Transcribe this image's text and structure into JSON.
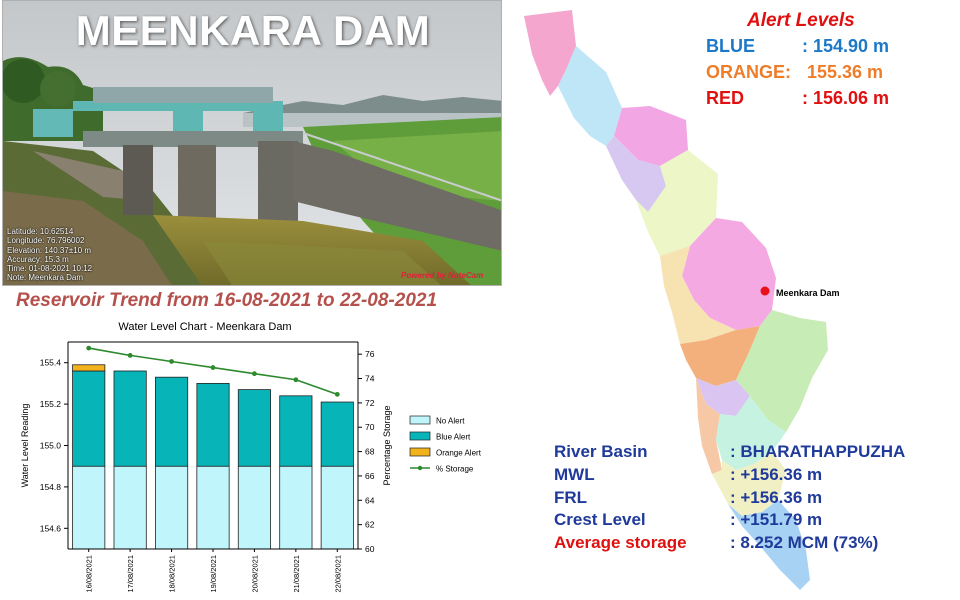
{
  "photo": {
    "title": "MEENKARA DAM",
    "meta_lines": [
      "Latitude: 10.62514",
      "Longitude: 76.796002",
      "Elevation: 140.37±10 m",
      "Accuracy: 15.3 m",
      "Time: 01-08-2021 10:12",
      "Note: Meenkara Dam"
    ],
    "watermark": "Powered by NoteCam"
  },
  "trend_heading": "Reservoir Trend from 16-08-2021 to 22-08-2021",
  "alert_levels": {
    "title": "Alert Levels",
    "blue": {
      "label": "BLUE",
      "value": ": 154.90 m",
      "color": "#1e78c8"
    },
    "orange": {
      "label": "ORANGE:",
      "value": " 155.36 m",
      "color": "#ee7d2a"
    },
    "red": {
      "label": "RED",
      "value": ": 156.06 m",
      "color": "#e01010"
    }
  },
  "map": {
    "dam_label": "Meenkara Dam",
    "marker_color": "#e8101a"
  },
  "dam_info": {
    "river_basin": {
      "label": "River Basin",
      "value": ":  BHARATHAPPUZHA"
    },
    "mwl": {
      "label": "MWL",
      "value": ": +156.36 m"
    },
    "frl": {
      "label": "FRL",
      "value": ": +156.36 m"
    },
    "crest_level": {
      "label": "Crest Level",
      "value": ": +151.79 m"
    },
    "average_storage": {
      "label": "Average storage",
      "value": ": 8.252 MCM (73%)"
    }
  },
  "chart_data": {
    "type": "bar",
    "title": "Water Level Chart - Meenkara Dam",
    "ylabel": "Water Level Reading",
    "y2label": "Percentage Storage",
    "categories": [
      "16/08/2021",
      "17/08/2021",
      "18/08/2021",
      "19/08/2021",
      "20/08/2021",
      "21/08/2021",
      "22/08/2021"
    ],
    "ylim": [
      154.5,
      155.5
    ],
    "yticks": [
      154.6,
      154.8,
      155.0,
      155.2,
      155.4
    ],
    "y2lim": [
      60,
      77
    ],
    "y2ticks": [
      60,
      62,
      64,
      66,
      68,
      70,
      72,
      74,
      76
    ],
    "series": [
      {
        "name": "No Alert",
        "type": "stacked-bar",
        "color": "#bff5fb",
        "values": [
          154.9,
          154.9,
          154.9,
          154.9,
          154.9,
          154.9,
          154.9
        ]
      },
      {
        "name": "Blue Alert",
        "type": "stacked-bar",
        "color": "#07b5b9",
        "values": [
          155.36,
          155.36,
          155.33,
          155.3,
          155.27,
          155.24,
          155.21
        ]
      },
      {
        "name": "Orange Alert",
        "type": "stacked-bar",
        "color": "#f2b21c",
        "values": [
          155.39,
          null,
          null,
          null,
          null,
          null,
          null
        ]
      },
      {
        "name": "% Storage",
        "type": "line",
        "axis": "right",
        "color": "#2d8a2d",
        "values": [
          76.5,
          75.9,
          75.4,
          74.9,
          74.4,
          73.9,
          72.7
        ]
      }
    ],
    "legend_position": "right",
    "grid": false
  }
}
